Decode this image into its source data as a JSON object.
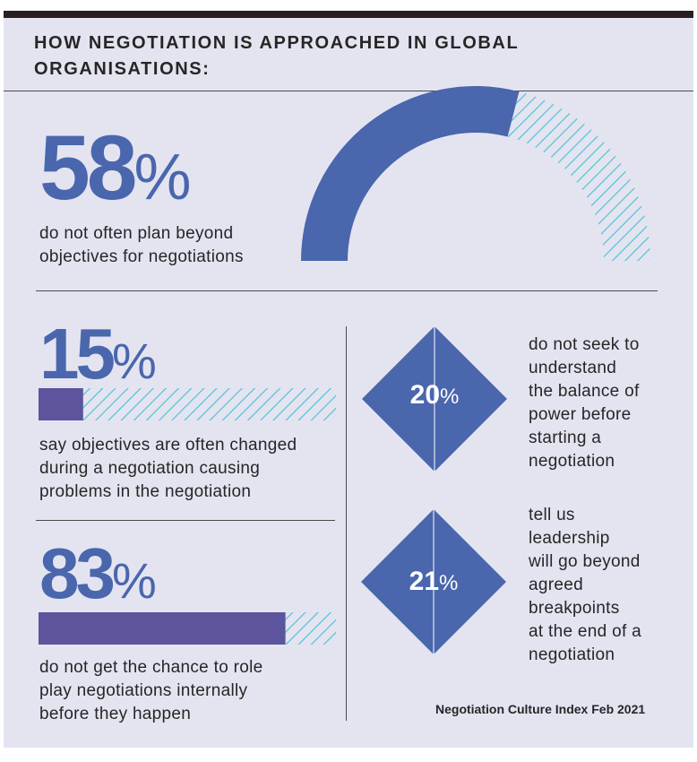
{
  "title": "HOW NEGOTIATION IS APPROACHED IN GLOBAL ORGANISATIONS:",
  "colors": {
    "background": "#e4e4f1",
    "blue": "#4a66ad",
    "purple": "#5c549c",
    "hatch": "#5bc3d6",
    "text": "#262626"
  },
  "stat_58": {
    "number": "58",
    "unit": "%",
    "fraction": 0.58,
    "description_lines": [
      "do not often plan beyond",
      "objectives for negotiations"
    ]
  },
  "stat_15": {
    "number": "15",
    "unit": "%",
    "fraction": 0.15,
    "description_lines": [
      "say objectives are often changed",
      "during a negotiation causing",
      "problems in the negotiation"
    ]
  },
  "stat_83": {
    "number": "83",
    "unit": "%",
    "fraction": 0.83,
    "description_lines": [
      "do not get the chance to role",
      "play negotiations internally",
      "before they happen"
    ]
  },
  "stat_20": {
    "number": "20",
    "unit": "%",
    "description_lines": [
      "do not seek to",
      "understand",
      "the balance of",
      "power before",
      "starting a",
      "negotiation"
    ]
  },
  "stat_21": {
    "number": "21",
    "unit": "%",
    "description_lines": [
      "tell us",
      "leadership",
      "will go beyond",
      "agreed",
      "breakpoints",
      "at the end of a",
      "negotiation"
    ]
  },
  "source": "Negotiation Culture Index Feb 2021"
}
